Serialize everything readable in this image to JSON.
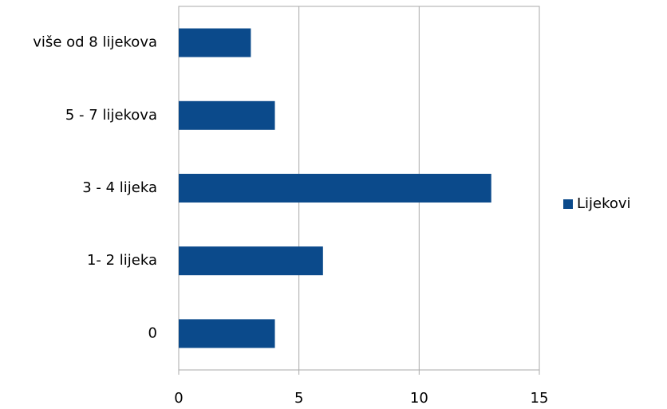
{
  "chart_data": {
    "type": "bar",
    "orientation": "horizontal",
    "categories": [
      "0",
      "1- 2 lijeka",
      "3 - 4 lijeka",
      "5 - 7 lijekova",
      "više od 8 lijekova"
    ],
    "series": [
      {
        "name": "Lijekovi",
        "color": "#0b4a8b",
        "values": [
          4,
          6,
          13,
          4,
          3
        ]
      }
    ],
    "xlim": [
      0,
      15
    ],
    "xticks": [
      0,
      5,
      10,
      15
    ],
    "grid": true,
    "legend": "right"
  }
}
